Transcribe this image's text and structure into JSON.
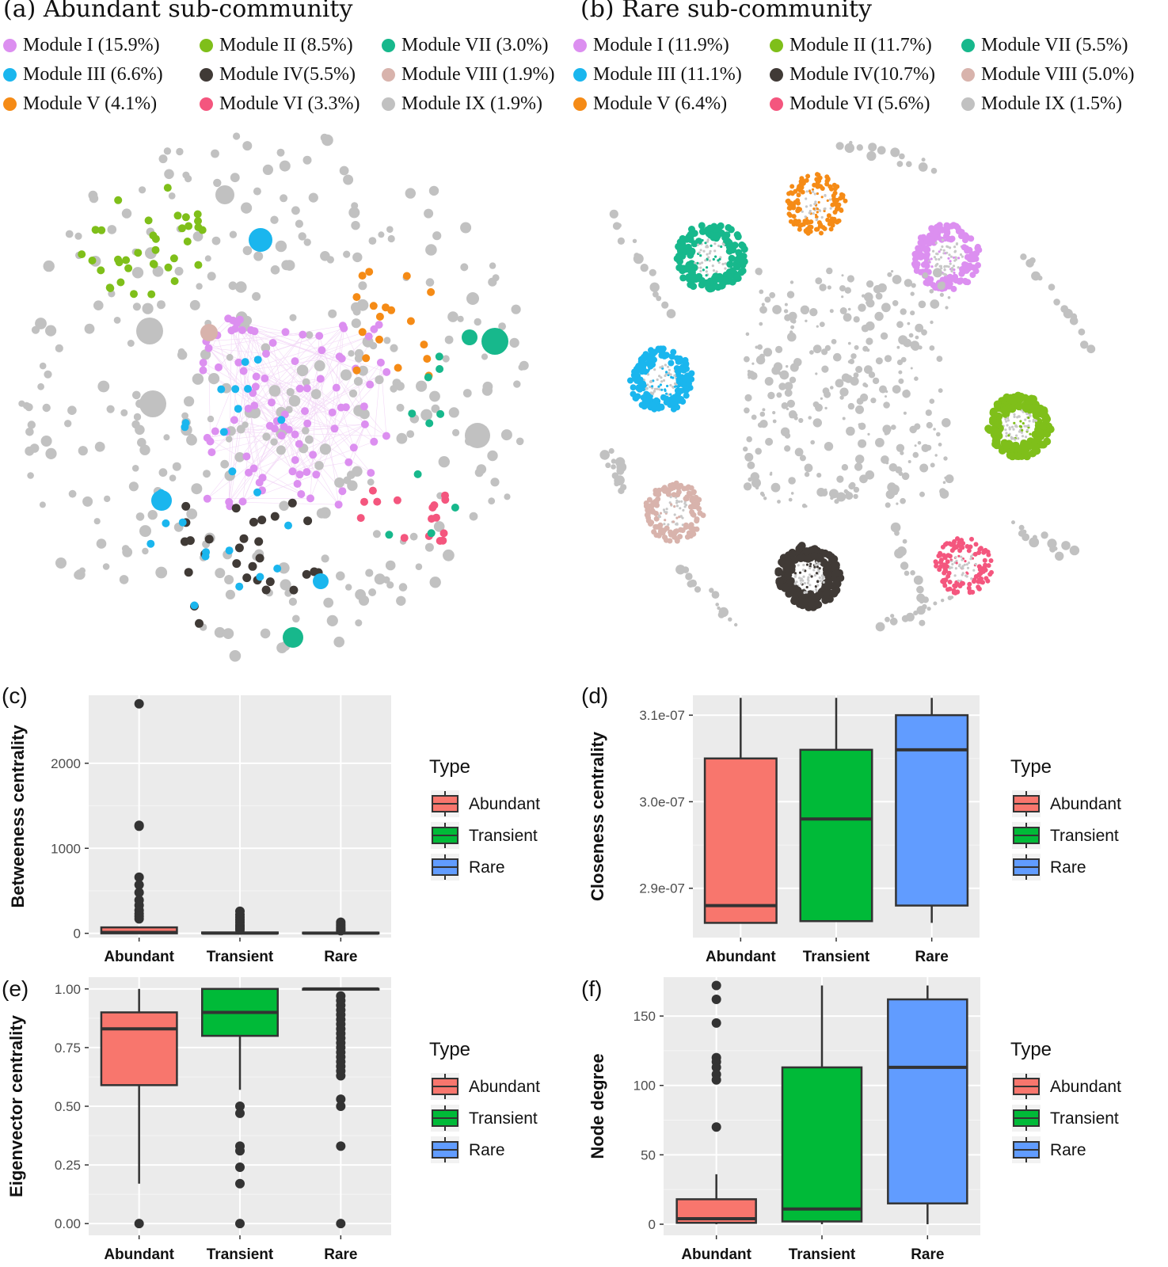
{
  "colors": {
    "I": "#dc8ff0",
    "II": "#7fbf1a",
    "III": "#1ab6ee",
    "IV": "#403a36",
    "V": "#f58b16",
    "VI": "#f4567e",
    "VII": "#17b88c",
    "VIII": "#d8b3ac",
    "IX": "#c1c1c1",
    "abundant": "#f8766d",
    "transient": "#00ba38",
    "rare": "#619cff",
    "outlier": "#333333",
    "panel_bg": "#ebebeb"
  },
  "network_a": {
    "title": "(a) Abundant sub-community",
    "legend": [
      {
        "label": "Module I (15.9%)",
        "color": "I"
      },
      {
        "label": "Module II (8.5%)",
        "color": "II"
      },
      {
        "label": "Module VII (3.0%)",
        "color": "VII"
      },
      {
        "label": "Module III (6.6%)",
        "color": "III"
      },
      {
        "label": "Module IV(5.5%)",
        "color": "IV"
      },
      {
        "label": "Module VIII (1.9%)",
        "color": "VIII"
      },
      {
        "label": "Module V (4.1%)",
        "color": "V"
      },
      {
        "label": "Module VI (3.3%)",
        "color": "VI"
      },
      {
        "label": "Module IX (1.9%)",
        "color": "IX"
      }
    ]
  },
  "network_b": {
    "title": "(b) Rare sub-community",
    "legend": [
      {
        "label": "Module I (11.9%)",
        "color": "I"
      },
      {
        "label": "Module II (11.7%)",
        "color": "II"
      },
      {
        "label": "Module VII (5.5%)",
        "color": "VII"
      },
      {
        "label": "Module III (11.1%)",
        "color": "III"
      },
      {
        "label": "Module IV(10.7%)",
        "color": "IV"
      },
      {
        "label": "Module VIII (5.0%)",
        "color": "VIII"
      },
      {
        "label": "Module V (6.4%)",
        "color": "V"
      },
      {
        "label": "Module VI (5.6%)",
        "color": "VI"
      },
      {
        "label": "Module IX (1.5%)",
        "color": "IX"
      }
    ]
  },
  "chart_data": [
    {
      "panel": "(c)",
      "type": "box",
      "ylabel": "Betweeness centrality",
      "categories": [
        "Abundant",
        "Transient",
        "Rare"
      ],
      "ylim": [
        -50,
        2800
      ],
      "yticks": [
        0,
        1000,
        2000
      ],
      "ytick_labels": [
        "0",
        "1000",
        "2000"
      ],
      "boxes": [
        {
          "q1": 0,
          "median": 10,
          "q3": 70,
          "lo": 0,
          "hi": 75,
          "outliers": [
            2700,
            1270,
            1260,
            660,
            570,
            480,
            390,
            330,
            270,
            230,
            200,
            170
          ]
        },
        {
          "q1": 0,
          "median": 2,
          "q3": 10,
          "lo": 0,
          "hi": 15,
          "outliers": [
            260,
            220,
            190,
            160,
            130,
            100,
            80,
            60,
            40
          ]
        },
        {
          "q1": 0,
          "median": 2,
          "q3": 8,
          "lo": 0,
          "hi": 12,
          "outliers": [
            130,
            110,
            90,
            70,
            55,
            40,
            30
          ]
        }
      ],
      "legend": {
        "title": "Type",
        "entries": [
          "Abundant",
          "Transient",
          "Rare"
        ]
      }
    },
    {
      "panel": "(d)",
      "type": "box",
      "ylabel": "Closeness centrality",
      "categories": [
        "Abundant",
        "Transient",
        "Rare"
      ],
      "ylim": [
        2.843e-07,
        3.123e-07
      ],
      "yticks": [
        2.9e-07,
        3e-07,
        3.1e-07
      ],
      "ytick_labels": [
        "2.9e-07",
        "3.0e-07",
        "3.1e-07"
      ],
      "boxes": [
        {
          "q1": 2.86e-07,
          "median": 2.88e-07,
          "q3": 3.05e-07,
          "lo": 2.86e-07,
          "hi": 3.12e-07,
          "outliers": []
        },
        {
          "q1": 2.862e-07,
          "median": 2.98e-07,
          "q3": 3.06e-07,
          "lo": 2.862e-07,
          "hi": 3.12e-07,
          "outliers": []
        },
        {
          "q1": 2.88e-07,
          "median": 3.06e-07,
          "q3": 3.1e-07,
          "lo": 2.86e-07,
          "hi": 3.12e-07,
          "outliers": []
        }
      ],
      "legend": {
        "title": "Type",
        "entries": [
          "Abundant",
          "Transient",
          "Rare"
        ]
      }
    },
    {
      "panel": "(e)",
      "type": "box",
      "ylabel": "Eigenvector centrality",
      "categories": [
        "Abundant",
        "Transient",
        "Rare"
      ],
      "ylim": [
        -0.05,
        1.05
      ],
      "yticks": [
        0,
        0.25,
        0.5,
        0.75,
        1.0
      ],
      "ytick_labels": [
        "0.00",
        "0.25",
        "0.50",
        "0.75",
        "1.00"
      ],
      "boxes": [
        {
          "q1": 0.59,
          "median": 0.83,
          "q3": 0.9,
          "lo": 0.17,
          "hi": 1.0,
          "outliers": [
            0
          ]
        },
        {
          "q1": 0.8,
          "median": 0.9,
          "q3": 1.0,
          "lo": 0.57,
          "hi": 1.0,
          "outliers": [
            0.5,
            0.47,
            0.33,
            0.31,
            0.24,
            0.17,
            0
          ]
        },
        {
          "q1": 1.0,
          "median": 1.0,
          "q3": 1.0,
          "lo": 1.0,
          "hi": 1.0,
          "outliers": [
            0.97,
            0.95,
            0.93,
            0.91,
            0.89,
            0.87,
            0.85,
            0.83,
            0.81,
            0.79,
            0.77,
            0.75,
            0.73,
            0.71,
            0.69,
            0.67,
            0.65,
            0.63,
            0.53,
            0.5,
            0.33,
            0
          ]
        }
      ],
      "legend": {
        "title": "Type",
        "entries": [
          "Abundant",
          "Transient",
          "Rare"
        ]
      }
    },
    {
      "panel": "(f)",
      "type": "box",
      "ylabel": "Node degree",
      "categories": [
        "Abundant",
        "Transient",
        "Rare"
      ],
      "ylim": [
        -8,
        178
      ],
      "yticks": [
        0,
        50,
        100,
        150
      ],
      "ytick_labels": [
        "0",
        "50",
        "100",
        "150"
      ],
      "boxes": [
        {
          "q1": 1,
          "median": 4,
          "q3": 18,
          "lo": 0,
          "hi": 36,
          "outliers": [
            172,
            162,
            145,
            120,
            117,
            113,
            108,
            104,
            70
          ]
        },
        {
          "q1": 2,
          "median": 11,
          "q3": 113,
          "lo": 0,
          "hi": 172,
          "outliers": []
        },
        {
          "q1": 15,
          "median": 113,
          "q3": 162,
          "lo": 0,
          "hi": 172,
          "outliers": []
        }
      ],
      "legend": {
        "title": "Type",
        "entries": [
          "Abundant",
          "Transient",
          "Rare"
        ]
      }
    }
  ]
}
